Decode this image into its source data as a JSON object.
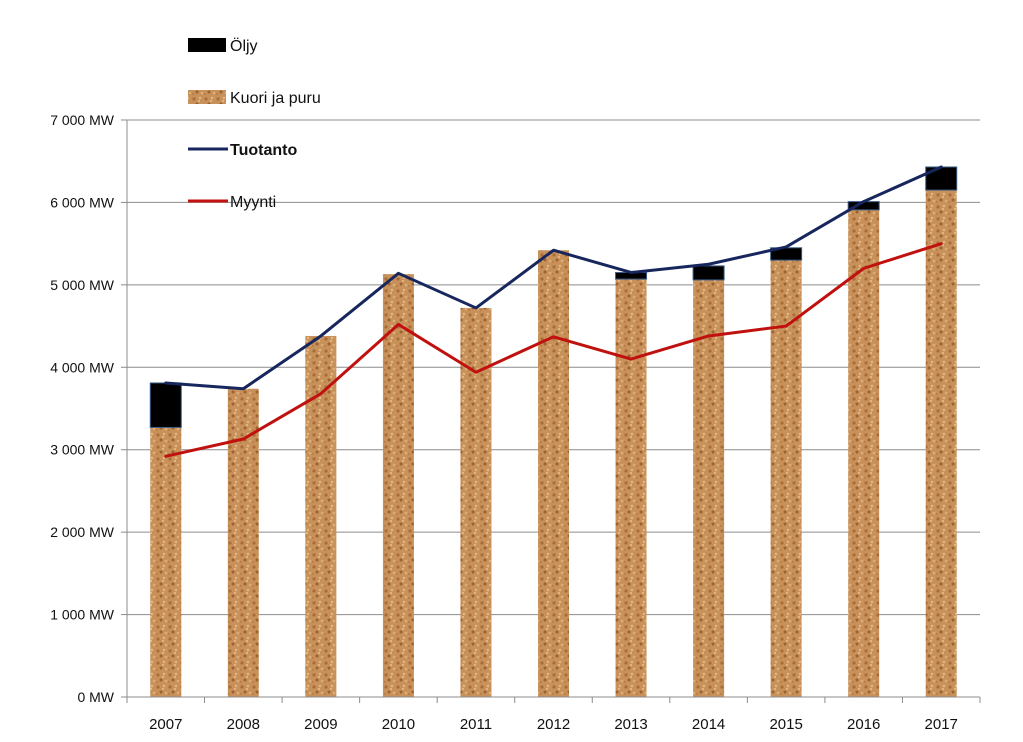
{
  "chart_data": {
    "type": "bar",
    "stacked": true,
    "categories": [
      "2007",
      "2008",
      "2009",
      "2010",
      "2011",
      "2012",
      "2013",
      "2014",
      "2015",
      "2016",
      "2017"
    ],
    "series": [
      {
        "name": "Kuori ja puru",
        "kind": "bar",
        "color": "#c8915a",
        "values": [
          3270,
          3740,
          4380,
          5130,
          4720,
          5420,
          5070,
          5060,
          5300,
          5910,
          6150
        ]
      },
      {
        "name": "Öljy",
        "kind": "bar",
        "color": "#000000",
        "values": [
          540,
          0,
          0,
          0,
          0,
          0,
          80,
          170,
          150,
          100,
          280
        ]
      },
      {
        "name": "Tuotanto",
        "kind": "line",
        "color": "#17275e",
        "values": [
          3810,
          3740,
          4380,
          5140,
          4720,
          5420,
          5150,
          5250,
          5460,
          6010,
          6430
        ]
      },
      {
        "name": "Myynti",
        "kind": "line",
        "color": "#c0110f",
        "values": [
          2920,
          3130,
          3680,
          4520,
          3940,
          4370,
          4100,
          4380,
          4500,
          5200,
          5500
        ]
      }
    ],
    "ylim": [
      0,
      7000
    ],
    "yticks": [
      {
        "value": 0,
        "label": "0 MW"
      },
      {
        "value": 1000,
        "label": "1 000 MW"
      },
      {
        "value": 2000,
        "label": "2 000 MW"
      },
      {
        "value": 3000,
        "label": "3 000 MW"
      },
      {
        "value": 4000,
        "label": "4 000 MW"
      },
      {
        "value": 5000,
        "label": "5 000 MW"
      },
      {
        "value": 6000,
        "label": "6 000 MW"
      },
      {
        "value": 7000,
        "label": "7 000 MW"
      }
    ],
    "grid": true,
    "legend": {
      "position": "top-left",
      "entries": [
        {
          "label": "Öljy",
          "swatch": "bar",
          "color": "#000000"
        },
        {
          "label": "Kuori ja puru",
          "swatch": "bar",
          "color": "#c8915a"
        },
        {
          "label": "Tuotanto",
          "swatch": "line",
          "color": "#17275e",
          "bold": true
        },
        {
          "label": "Myynti",
          "swatch": "line",
          "color": "#c0110f"
        }
      ]
    },
    "title": "",
    "xlabel": "",
    "ylabel": ""
  }
}
